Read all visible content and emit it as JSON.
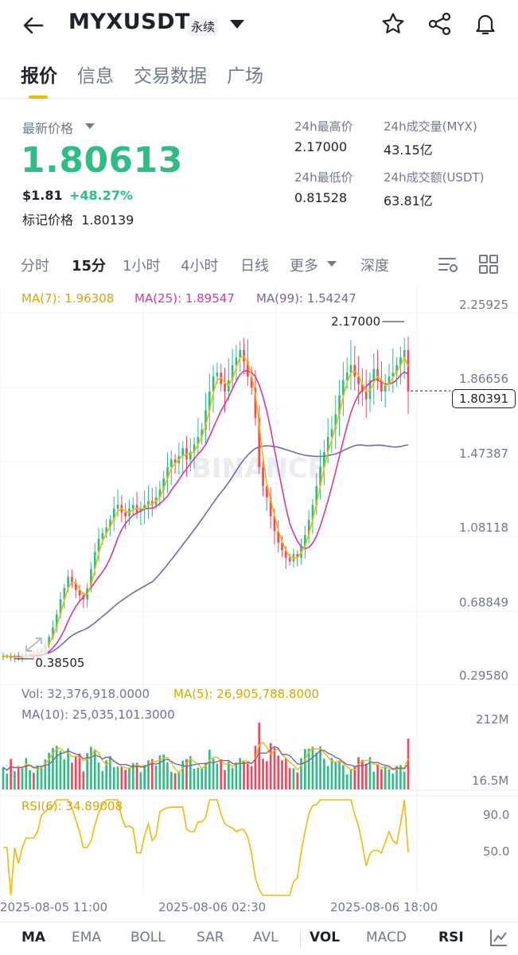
{
  "header": {
    "symbol": "MYXUSDT",
    "contract_type": "永续",
    "icons": [
      "back-arrow-icon",
      "chevron-down-icon",
      "star-icon",
      "share-icon",
      "bell-icon"
    ]
  },
  "tabs": [
    {
      "label": "报价",
      "active": true
    },
    {
      "label": "信息",
      "active": false
    },
    {
      "label": "交易数据",
      "active": false
    },
    {
      "label": "广场",
      "active": false
    }
  ],
  "price": {
    "label": "最新价格",
    "last": "1.80613",
    "usd": "$1.81",
    "change": "+48.27%",
    "mark_label": "标记价格",
    "mark_value": "1.80139",
    "color_up": "#2ebd85"
  },
  "stats": {
    "high_label": "24h最高价",
    "high_value": "2.17000",
    "low_label": "24h最低价",
    "low_value": "0.81528",
    "vol_base_label": "24h成交量(MYX)",
    "vol_base_value": "43.15亿",
    "vol_quote_label": "24h成交额(USDT)",
    "vol_quote_value": "63.81亿"
  },
  "intervals": {
    "items": [
      "分时",
      "15分",
      "1小时",
      "4小时",
      "日线",
      "更多",
      "深度"
    ],
    "selected": "15分",
    "icons": [
      "chart-settings-icon",
      "layout-grid-icon"
    ]
  },
  "chart_data": {
    "type": "line",
    "watermark": "BINANCE",
    "ma_legend": {
      "ma7": "MA(7): 1.96308",
      "ma25": "MA(25): 1.89547",
      "ma99": "MA(99): 1.54247"
    },
    "colors": {
      "ma7": "#f0b90b",
      "ma25": "#d6389b",
      "ma99": "#7b66a8",
      "up": "#2ebd85",
      "down": "#f6465d"
    },
    "y_ticks": [
      "2.25925",
      "1.86656",
      "1.47387",
      "1.08118",
      "0.68849",
      "0.29580"
    ],
    "ylim": [
      0.2958,
      2.25925
    ],
    "current_price_tag": "1.80391",
    "high_annotation": "2.17000",
    "low_annotation": "0.38505",
    "close": [
      0.4,
      0.4,
      0.39,
      0.4,
      0.39,
      0.4,
      0.41,
      0.41,
      0.4,
      0.42,
      0.43,
      0.46,
      0.5,
      0.55,
      0.62,
      0.7,
      0.76,
      0.82,
      0.79,
      0.75,
      0.72,
      0.7,
      0.76,
      0.86,
      0.95,
      1.02,
      1.05,
      1.08,
      1.12,
      1.18,
      1.2,
      1.16,
      1.14,
      1.18,
      1.2,
      1.16,
      1.18,
      1.2,
      1.22,
      1.2,
      1.24,
      1.28,
      1.34,
      1.4,
      1.44,
      1.42,
      1.46,
      1.5,
      1.44,
      1.48,
      1.52,
      1.56,
      1.6,
      1.7,
      1.8,
      1.88,
      1.9,
      1.84,
      1.8,
      1.86,
      1.94,
      1.98,
      2.02,
      1.96,
      1.88,
      1.82,
      1.66,
      1.4,
      1.3,
      1.24,
      1.14,
      1.06,
      1.0,
      0.96,
      0.92,
      0.9,
      0.94,
      0.92,
      0.98,
      1.04,
      1.12,
      1.2,
      1.3,
      1.4,
      1.48,
      1.56,
      1.6,
      1.68,
      1.78,
      1.86,
      1.9,
      1.94,
      1.88,
      1.84,
      1.8,
      1.76,
      1.86,
      1.92,
      1.86,
      1.8,
      1.84,
      1.88,
      1.9,
      1.94,
      1.98,
      2.02,
      1.8
    ],
    "x_ticks": [
      "2025-08-05 11:00",
      "2025-08-06 02:30",
      "2025-08-06 18:00"
    ],
    "volume": {
      "vol_label": "Vol: 32,376,918.0000",
      "ma5_label": "MA(5): 26,905,788.8000",
      "ma10_label": "MA(10): 25,035,101.3000",
      "y_ticks": [
        "212M",
        "16.5M"
      ]
    },
    "rsi": {
      "label": "RSI(6): 34.89008",
      "y_ticks": [
        "90.0",
        "50.0"
      ]
    }
  },
  "toolbar": {
    "items": [
      "MA",
      "EMA",
      "BOLL",
      "SAR",
      "AVL",
      "VOL",
      "MACD",
      "RSI"
    ],
    "active": [
      "MA",
      "VOL",
      "RSI"
    ],
    "icons": [
      "indicator-settings-icon"
    ]
  }
}
